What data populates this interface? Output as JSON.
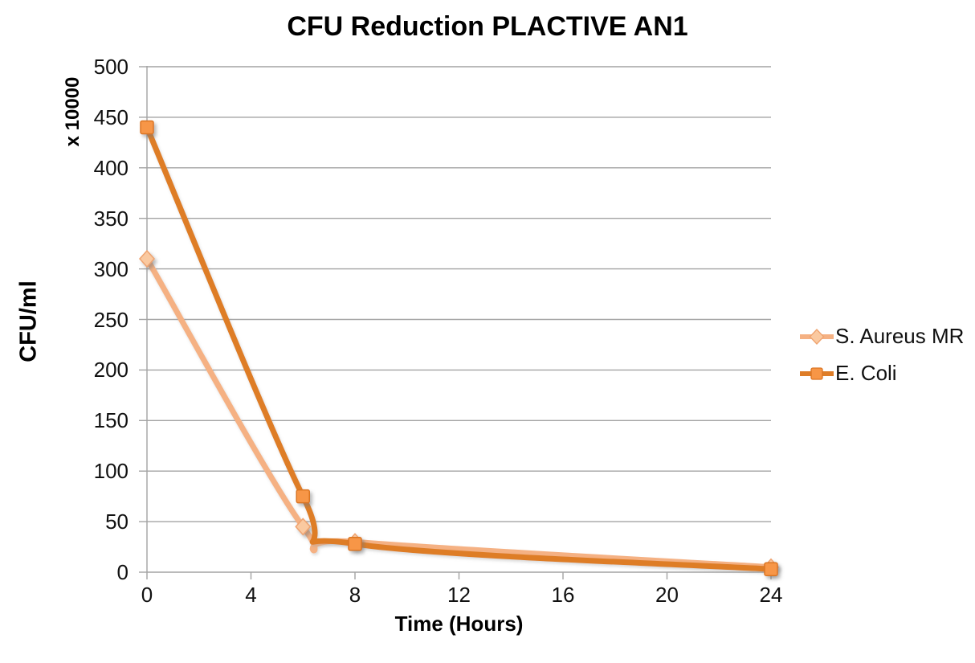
{
  "chart_data": {
    "type": "line",
    "title": "CFU Reduction PLACTIVE AN1",
    "xlabel": "Time (Hours)",
    "ylabel": "CFU/ml",
    "y_axis_multiplier": "x 10000",
    "x": [
      0,
      6,
      8,
      24
    ],
    "series": [
      {
        "name": "S. Aureus MR",
        "marker": "diamond",
        "line_color": "#F5B183",
        "marker_fill": "#FAC9A0",
        "marker_stroke": "#EFA36F",
        "values": [
          310,
          45,
          30,
          5
        ]
      },
      {
        "name": "E. Coli",
        "marker": "square",
        "line_color": "#DE7D28",
        "marker_fill": "#F79646",
        "marker_stroke": "#DB7524",
        "values": [
          440,
          75,
          28,
          3
        ]
      }
    ],
    "xlim": [
      0,
      24
    ],
    "ylim": [
      0,
      500
    ],
    "xticks": [
      0,
      4,
      8,
      12,
      16,
      20,
      24
    ],
    "ytick_step": 50,
    "grid": "horizontal",
    "legend_position": "right",
    "line_style": "smoothed",
    "axis_color": "#A3A3A3",
    "text_color": "#111111",
    "background": "#FFFFFF"
  }
}
